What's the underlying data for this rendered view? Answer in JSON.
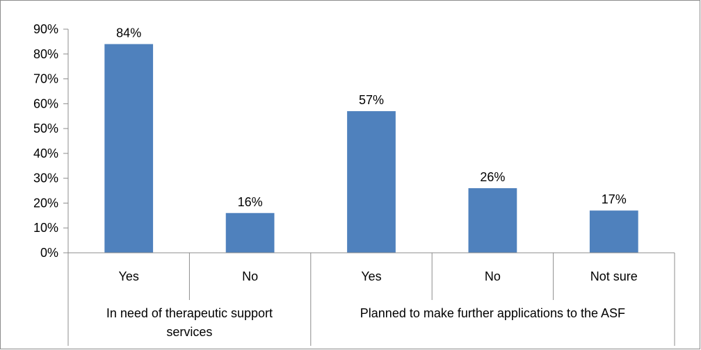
{
  "chart_data": {
    "type": "bar",
    "title": "",
    "xlabel": "",
    "ylabel": "",
    "ylim": [
      0,
      90
    ],
    "y_ticks": [
      0,
      10,
      20,
      30,
      40,
      50,
      60,
      70,
      80,
      90
    ],
    "y_tick_format": "percent",
    "grid": false,
    "legend": "none",
    "bar_color": "#4F81BD",
    "categories": [
      "Yes",
      "No",
      "Yes",
      "No",
      "Not sure"
    ],
    "values": [
      84,
      16,
      57,
      26,
      17
    ],
    "data_labels": [
      "84%",
      "16%",
      "57%",
      "26%",
      "17%"
    ],
    "groups": [
      {
        "label_lines": [
          "In need of therapeutic support",
          "services"
        ],
        "category_indices": [
          0,
          1
        ]
      },
      {
        "label_lines": [
          "Planned to make further applications to the ASF"
        ],
        "category_indices": [
          2,
          3,
          4
        ]
      }
    ]
  }
}
